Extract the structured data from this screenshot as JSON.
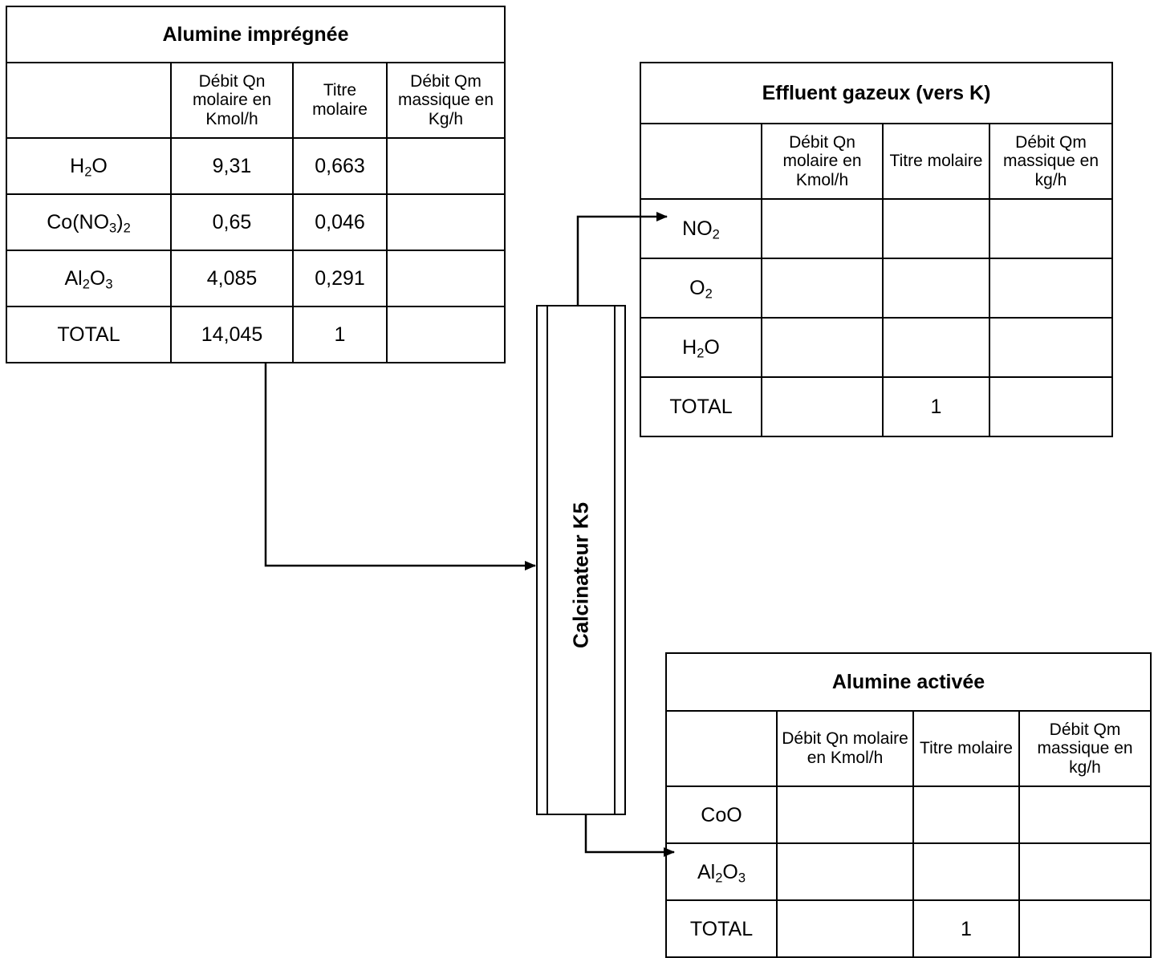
{
  "impregnated_alumina": {
    "title": "Alumine imprégnée",
    "headers": [
      "",
      "Débit Qn molaire en Kmol/h",
      "Titre molaire",
      "Débit Qm massique en Kg/h"
    ],
    "rows": [
      {
        "species": "H2O",
        "molar_flow": "9,31",
        "molar_fraction": "0,663",
        "mass_flow": ""
      },
      {
        "species": "Co(NO3)2",
        "molar_flow": "0,65",
        "molar_fraction": "0,046",
        "mass_flow": ""
      },
      {
        "species": "Al2O3",
        "molar_flow": "4,085",
        "molar_fraction": "0,291",
        "mass_flow": ""
      },
      {
        "species": "TOTAL",
        "molar_flow": "14,045",
        "molar_fraction": "1",
        "mass_flow": ""
      }
    ]
  },
  "gas_effluent": {
    "title": "Effluent gazeux (vers K)",
    "headers": [
      "",
      "Débit Qn molaire en Kmol/h",
      "Titre molaire",
      "Débit Qm massique en kg/h"
    ],
    "rows": [
      {
        "species": "NO2",
        "molar_flow": "",
        "molar_fraction": "",
        "mass_flow": ""
      },
      {
        "species": "O2",
        "molar_flow": "",
        "molar_fraction": "",
        "mass_flow": ""
      },
      {
        "species": "H2O",
        "molar_flow": "",
        "molar_fraction": "",
        "mass_flow": ""
      },
      {
        "species": "TOTAL",
        "molar_flow": "",
        "molar_fraction": "1",
        "mass_flow": ""
      }
    ]
  },
  "activated_alumina": {
    "title": "Alumine activée",
    "headers": [
      "",
      "Débit Qn molaire en Kmol/h",
      "Titre molaire",
      "Débit Qm massique en kg/h"
    ],
    "rows": [
      {
        "species": "CoO",
        "molar_flow": "",
        "molar_fraction": "",
        "mass_flow": ""
      },
      {
        "species": "Al2O3",
        "molar_flow": "",
        "molar_fraction": "",
        "mass_flow": ""
      },
      {
        "species": "TOTAL",
        "molar_flow": "",
        "molar_fraction": "1",
        "mass_flow": ""
      }
    ]
  },
  "calcinator": {
    "label": "Calcinateur K5"
  }
}
